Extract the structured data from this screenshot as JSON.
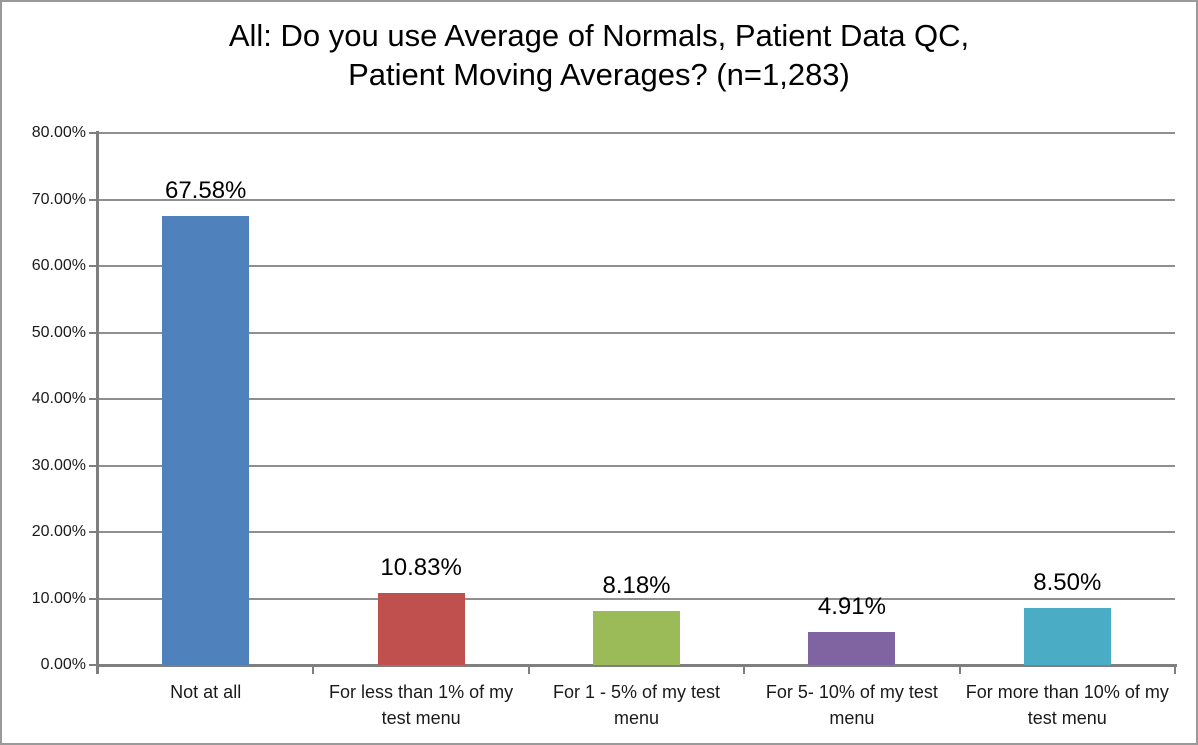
{
  "chart_data": {
    "type": "bar",
    "title": "All: Do you use Average of Normals, Patient Data QC,\nPatient Moving Averages? (n=1,283)",
    "categories": [
      "Not at all",
      "For less than 1% of my test menu",
      "For 1 - 5% of my test menu",
      "For 5- 10% of my test menu",
      "For more than 10% of my test menu"
    ],
    "values": [
      67.58,
      10.83,
      8.18,
      4.91,
      8.5
    ],
    "data_labels": [
      "67.58%",
      "10.83%",
      "8.18%",
      "4.91%",
      "8.50%"
    ],
    "bar_colors": [
      "#4F81BD",
      "#C0504D",
      "#9BBB59",
      "#8064A2",
      "#4BACC6"
    ],
    "xlabel": "",
    "ylabel": "",
    "ylim": [
      0,
      80
    ],
    "y_tick_step": 10,
    "y_tick_labels": [
      "0.00%",
      "10.00%",
      "20.00%",
      "30.00%",
      "40.00%",
      "50.00%",
      "60.00%",
      "70.00%",
      "80.00%"
    ],
    "grid": true,
    "legend": "none",
    "colors": {
      "axis": "#7f7f7f",
      "gridline": "#8f8f8f",
      "frame_border": "#9a9a9a",
      "text": "#000000"
    }
  }
}
